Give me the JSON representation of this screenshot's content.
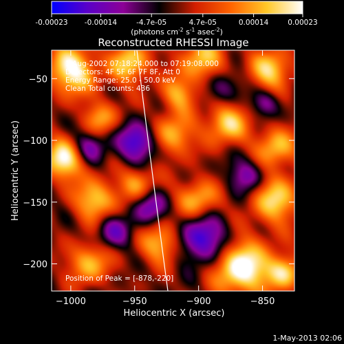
{
  "colorbar": {
    "ticks": [
      {
        "value": -0.00023,
        "label": "-0.00023"
      },
      {
        "value": -0.00014,
        "label": "-0.00014"
      },
      {
        "value": -4.7e-05,
        "label": "-4.7e-05"
      },
      {
        "value": 4.7e-05,
        "label": "4.7e-05"
      },
      {
        "value": 0.00014,
        "label": "0.00014"
      },
      {
        "value": 0.00023,
        "label": "0.00023"
      }
    ],
    "range": [
      -0.00023,
      0.00023
    ],
    "unit_main": "(photons cm",
    "unit_exp1": "-2",
    "unit_mid": " s",
    "unit_exp2": "-1",
    "unit_end": " asec",
    "unit_exp3": "-2",
    "unit_close": ")"
  },
  "chart_data": {
    "type": "heatmap",
    "title": "Reconstructed RHESSI Image",
    "xlabel": "Heliocentric X (arcsec)",
    "ylabel": "Heliocentric Y (arcsec)",
    "xlim": [
      -1015,
      -825
    ],
    "ylim": [
      -222,
      -27
    ],
    "xticks": [
      -1000,
      -950,
      -900,
      -850
    ],
    "yticks": [
      -50,
      -100,
      -150,
      -200
    ],
    "xtick_labels": [
      "−1000",
      "−950",
      "−900",
      "−850"
    ],
    "ytick_labels": [
      "−50",
      "−100",
      "−150",
      "−200"
    ],
    "colormap": [
      "#0000ff",
      "#5a00c8",
      "#8c0096",
      "#000000",
      "#d21e00",
      "#ff6400",
      "#ffc828",
      "#ffffff"
    ],
    "info_lines": [
      "1-Aug-2002 07:18:24.000 to 07:19:08.000",
      "Detectors: 4F 5F 6F 7F 8F, Att 0",
      "Energy Range: 25.0 - 50.0 keV",
      "Clean     Total counts: 436"
    ],
    "peak_label": "Position of Peak = [-878,-220]",
    "peak_position": [
      -878,
      -220
    ]
  },
  "footer": {
    "timestamp": "1-May-2013 02:06"
  }
}
